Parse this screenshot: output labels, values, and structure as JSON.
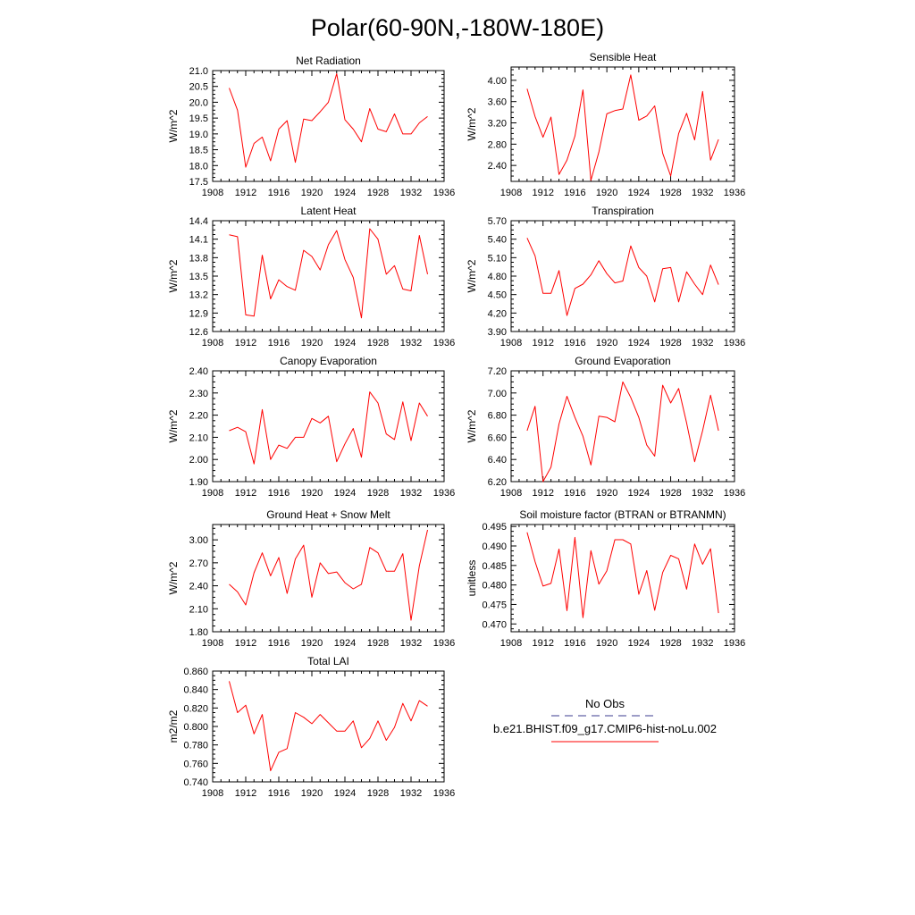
{
  "figure": {
    "title": "Polar(60-90N,-180W-180E)"
  },
  "legend": {
    "entries": [
      {
        "label": "No Obs",
        "style": "dashed",
        "color": "#3b3b8f"
      },
      {
        "label": "b.e21.BHIST.f09_g17.CMIP6-hist-noLu.002",
        "style": "solid",
        "color": "#ff0000"
      }
    ]
  },
  "chart_data": [
    {
      "type": "line",
      "title": "Net Radiation",
      "ylabel": "W/m^2",
      "xlim": [
        1908,
        1936
      ],
      "xticks": [
        1908,
        1912,
        1916,
        1920,
        1924,
        1928,
        1932,
        1936
      ],
      "ylim": [
        17.5,
        21.0
      ],
      "yticks": [
        "17.5",
        "18.0",
        "18.5",
        "19.0",
        "19.5",
        "20.0",
        "20.5",
        "21.0"
      ],
      "x": [
        1910,
        1911,
        1912,
        1913,
        1914,
        1915,
        1916,
        1917,
        1918,
        1919,
        1920,
        1921,
        1922,
        1923,
        1924,
        1925,
        1926,
        1927,
        1928,
        1929,
        1930,
        1931,
        1932,
        1933,
        1934
      ],
      "series": [
        {
          "color": "#ff0000",
          "values": [
            20.45,
            19.75,
            17.95,
            18.7,
            18.9,
            18.15,
            19.15,
            19.42,
            18.1,
            19.47,
            19.42,
            19.7,
            20.0,
            20.9,
            19.45,
            19.15,
            18.75,
            19.8,
            19.15,
            19.07,
            19.63,
            19.0,
            19.0,
            19.35,
            19.55
          ]
        }
      ]
    },
    {
      "type": "line",
      "title": "Sensible Heat",
      "ylabel": "W/m^2",
      "xlim": [
        1908,
        1936
      ],
      "xticks": [
        1908,
        1912,
        1916,
        1920,
        1924,
        1928,
        1932,
        1936
      ],
      "ylim": [
        2.1,
        4.25
      ],
      "yticks": [
        "2.40",
        "2.80",
        "3.20",
        "3.60",
        "4.00"
      ],
      "x": [
        1910,
        1911,
        1912,
        1913,
        1914,
        1915,
        1916,
        1917,
        1918,
        1919,
        1920,
        1921,
        1922,
        1923,
        1924,
        1925,
        1926,
        1927,
        1928,
        1929,
        1930,
        1931,
        1932,
        1933,
        1934
      ],
      "series": [
        {
          "color": "#ff0000",
          "values": [
            3.84,
            3.32,
            2.93,
            3.31,
            2.23,
            2.5,
            2.95,
            3.82,
            2.12,
            2.65,
            3.37,
            3.43,
            3.46,
            4.1,
            3.25,
            3.33,
            3.52,
            2.63,
            2.2,
            3.0,
            3.38,
            2.88,
            3.79,
            2.5,
            2.89
          ]
        }
      ]
    },
    {
      "type": "line",
      "title": "Latent Heat",
      "ylabel": "W/m^2",
      "xlim": [
        1908,
        1936
      ],
      "xticks": [
        1908,
        1912,
        1916,
        1920,
        1924,
        1928,
        1932,
        1936
      ],
      "ylim": [
        12.6,
        14.4
      ],
      "yticks": [
        "12.6",
        "12.9",
        "13.2",
        "13.5",
        "13.8",
        "14.1",
        "14.4"
      ],
      "x": [
        1910,
        1911,
        1912,
        1913,
        1914,
        1915,
        1916,
        1917,
        1918,
        1919,
        1920,
        1921,
        1922,
        1923,
        1924,
        1925,
        1926,
        1927,
        1928,
        1929,
        1930,
        1931,
        1932,
        1933,
        1934
      ],
      "series": [
        {
          "color": "#ff0000",
          "values": [
            14.17,
            14.14,
            12.87,
            12.85,
            13.84,
            13.13,
            13.44,
            13.33,
            13.27,
            13.92,
            13.82,
            13.6,
            14.01,
            14.24,
            13.77,
            13.48,
            12.82,
            14.27,
            14.1,
            13.53,
            13.67,
            13.29,
            13.26,
            14.16,
            13.53
          ]
        }
      ]
    },
    {
      "type": "line",
      "title": "Transpiration",
      "ylabel": "W/m^2",
      "xlim": [
        1908,
        1936
      ],
      "xticks": [
        1908,
        1912,
        1916,
        1920,
        1924,
        1928,
        1932,
        1936
      ],
      "ylim": [
        3.9,
        5.7
      ],
      "yticks": [
        "3.90",
        "4.20",
        "4.50",
        "4.80",
        "5.10",
        "5.40",
        "5.70"
      ],
      "x": [
        1910,
        1911,
        1912,
        1913,
        1914,
        1915,
        1916,
        1917,
        1918,
        1919,
        1920,
        1921,
        1922,
        1923,
        1924,
        1925,
        1926,
        1927,
        1928,
        1929,
        1930,
        1931,
        1932,
        1933,
        1934
      ],
      "series": [
        {
          "color": "#ff0000",
          "values": [
            5.42,
            5.13,
            4.52,
            4.52,
            4.89,
            4.16,
            4.6,
            4.67,
            4.82,
            5.05,
            4.84,
            4.69,
            4.72,
            5.29,
            4.94,
            4.8,
            4.38,
            4.92,
            4.94,
            4.38,
            4.87,
            4.67,
            4.5,
            4.98,
            4.66
          ]
        }
      ]
    },
    {
      "type": "line",
      "title": "Canopy Evaporation",
      "ylabel": "W/m^2",
      "xlim": [
        1908,
        1936
      ],
      "xticks": [
        1908,
        1912,
        1916,
        1920,
        1924,
        1928,
        1932,
        1936
      ],
      "ylim": [
        1.9,
        2.4
      ],
      "yticks": [
        "1.90",
        "2.00",
        "2.10",
        "2.20",
        "2.30",
        "2.40"
      ],
      "x": [
        1910,
        1911,
        1912,
        1913,
        1914,
        1915,
        1916,
        1917,
        1918,
        1919,
        1920,
        1921,
        1922,
        1923,
        1924,
        1925,
        1926,
        1927,
        1928,
        1929,
        1930,
        1931,
        1932,
        1933,
        1934
      ],
      "series": [
        {
          "color": "#ff0000",
          "values": [
            2.13,
            2.145,
            2.125,
            1.98,
            2.225,
            2.0,
            2.065,
            2.05,
            2.1,
            2.1,
            2.185,
            2.165,
            2.195,
            1.99,
            2.07,
            2.14,
            2.01,
            2.305,
            2.255,
            2.115,
            2.09,
            2.26,
            2.085,
            2.255,
            2.195
          ]
        }
      ]
    },
    {
      "type": "line",
      "title": "Ground Evaporation",
      "ylabel": "W/m^2",
      "xlim": [
        1908,
        1936
      ],
      "xticks": [
        1908,
        1912,
        1916,
        1920,
        1924,
        1928,
        1932,
        1936
      ],
      "ylim": [
        6.2,
        7.2
      ],
      "yticks": [
        "6.20",
        "6.40",
        "6.60",
        "6.80",
        "7.00",
        "7.20"
      ],
      "x": [
        1910,
        1911,
        1912,
        1913,
        1914,
        1915,
        1916,
        1917,
        1918,
        1919,
        1920,
        1921,
        1922,
        1923,
        1924,
        1925,
        1926,
        1927,
        1928,
        1929,
        1930,
        1931,
        1932,
        1933,
        1934
      ],
      "series": [
        {
          "color": "#ff0000",
          "values": [
            6.66,
            6.88,
            6.2,
            6.33,
            6.72,
            6.97,
            6.78,
            6.61,
            6.35,
            6.79,
            6.78,
            6.74,
            7.1,
            6.96,
            6.78,
            6.53,
            6.43,
            7.07,
            6.91,
            7.04,
            6.73,
            6.38,
            6.66,
            6.98,
            6.66
          ]
        }
      ]
    },
    {
      "type": "line",
      "title": "Ground Heat + Snow Melt",
      "ylabel": "W/m^2",
      "xlim": [
        1908,
        1936
      ],
      "xticks": [
        1908,
        1912,
        1916,
        1920,
        1924,
        1928,
        1932,
        1936
      ],
      "ylim": [
        1.8,
        3.2
      ],
      "yticks": [
        "1.80",
        "2.10",
        "2.40",
        "2.70",
        "3.00"
      ],
      "x": [
        1910,
        1911,
        1912,
        1913,
        1914,
        1915,
        1916,
        1917,
        1918,
        1919,
        1920,
        1921,
        1922,
        1923,
        1924,
        1925,
        1926,
        1927,
        1928,
        1929,
        1930,
        1931,
        1932,
        1933,
        1934
      ],
      "series": [
        {
          "color": "#ff0000",
          "values": [
            2.42,
            2.32,
            2.15,
            2.57,
            2.83,
            2.53,
            2.77,
            2.3,
            2.75,
            2.93,
            2.25,
            2.7,
            2.56,
            2.58,
            2.44,
            2.36,
            2.42,
            2.9,
            2.83,
            2.59,
            2.59,
            2.82,
            1.95,
            2.66,
            3.13
          ]
        }
      ]
    },
    {
      "type": "line",
      "title": "Soil moisture factor (BTRAN or BTRANMN)",
      "ylabel": "unitless",
      "xlim": [
        1908,
        1936
      ],
      "xticks": [
        1908,
        1912,
        1916,
        1920,
        1924,
        1928,
        1932,
        1936
      ],
      "ylim": [
        0.468,
        0.4955
      ],
      "yticks": [
        "0.470",
        "0.475",
        "0.480",
        "0.485",
        "0.490",
        "0.495"
      ],
      "x": [
        1910,
        1911,
        1912,
        1913,
        1914,
        1915,
        1916,
        1917,
        1918,
        1919,
        1920,
        1921,
        1922,
        1923,
        1924,
        1925,
        1926,
        1927,
        1928,
        1929,
        1930,
        1931,
        1932,
        1933,
        1934
      ],
      "series": [
        {
          "color": "#ff0000",
          "values": [
            0.4935,
            0.486,
            0.4797,
            0.4804,
            0.4892,
            0.4734,
            0.4922,
            0.4716,
            0.4888,
            0.4802,
            0.4836,
            0.4916,
            0.4916,
            0.4905,
            0.4776,
            0.4837,
            0.4735,
            0.4832,
            0.4876,
            0.4867,
            0.4789,
            0.4905,
            0.4853,
            0.4893,
            0.4728
          ]
        }
      ]
    },
    {
      "type": "line",
      "title": "Total LAI",
      "ylabel": "m2/m2",
      "xlim": [
        1908,
        1936
      ],
      "xticks": [
        1908,
        1912,
        1916,
        1920,
        1924,
        1928,
        1932,
        1936
      ],
      "ylim": [
        0.74,
        0.86
      ],
      "yticks": [
        "0.740",
        "0.760",
        "0.780",
        "0.800",
        "0.820",
        "0.840",
        "0.860"
      ],
      "x": [
        1910,
        1911,
        1912,
        1913,
        1914,
        1915,
        1916,
        1917,
        1918,
        1919,
        1920,
        1921,
        1922,
        1923,
        1924,
        1925,
        1926,
        1927,
        1928,
        1929,
        1930,
        1931,
        1932,
        1933,
        1934
      ],
      "series": [
        {
          "color": "#ff0000",
          "values": [
            0.849,
            0.815,
            0.823,
            0.792,
            0.813,
            0.752,
            0.772,
            0.776,
            0.815,
            0.81,
            0.803,
            0.813,
            0.804,
            0.795,
            0.795,
            0.806,
            0.777,
            0.787,
            0.806,
            0.785,
            0.799,
            0.825,
            0.806,
            0.828,
            0.822
          ]
        }
      ]
    }
  ]
}
